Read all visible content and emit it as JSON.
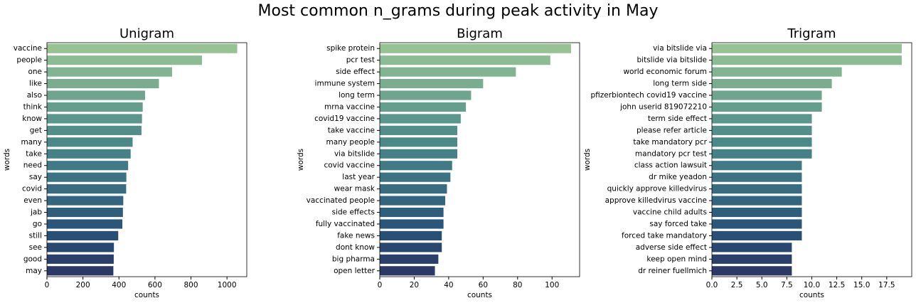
{
  "figure": {
    "title": "Most common n_grams during peak activity in May"
  },
  "chart_data": [
    {
      "type": "bar",
      "orientation": "horizontal",
      "title": "Unigram",
      "xlabel": "counts",
      "ylabel": "words",
      "xlim": [
        0,
        1110
      ],
      "xticks": [
        0,
        200,
        400,
        600,
        800,
        1000
      ],
      "xtick_labels": [
        "0",
        "200",
        "400",
        "600",
        "800",
        "1000"
      ],
      "categories": [
        "vaccine",
        "people",
        "one",
        "like",
        "also",
        "think",
        "know",
        "get",
        "many",
        "take",
        "need",
        "say",
        "covid",
        "even",
        "jab",
        "go",
        "still",
        "see",
        "good",
        "may"
      ],
      "values": [
        1057,
        861,
        695,
        622,
        545,
        532,
        528,
        525,
        476,
        465,
        451,
        441,
        440,
        424,
        422,
        419,
        396,
        372,
        371,
        369
      ],
      "grid": false,
      "palette": "crest"
    },
    {
      "type": "bar",
      "orientation": "horizontal",
      "title": "Bigram",
      "xlabel": "counts",
      "ylabel": "words",
      "xlim": [
        0,
        116
      ],
      "xticks": [
        0,
        20,
        40,
        60,
        80,
        100
      ],
      "xtick_labels": [
        "0",
        "20",
        "40",
        "60",
        "80",
        "100"
      ],
      "categories": [
        "spike protein",
        "pcr test",
        "side effect",
        "immune system",
        "long term",
        "mrna vaccine",
        "covid19 vaccine",
        "take vaccine",
        "many people",
        "via bitslide",
        "covid vaccine",
        "last year",
        "wear mask",
        "vaccinated people",
        "side effects",
        "fully vaccinated",
        "fake news",
        "dont know",
        "big pharma",
        "open letter"
      ],
      "values": [
        111,
        99,
        79,
        60,
        53,
        50,
        47,
        45,
        45,
        45,
        42,
        41,
        39,
        38,
        37,
        37,
        36,
        36,
        34,
        32
      ],
      "grid": false,
      "palette": "crest"
    },
    {
      "type": "bar",
      "orientation": "horizontal",
      "title": "Trigram",
      "xlabel": "counts",
      "ylabel": "words",
      "xlim": [
        0,
        20
      ],
      "xticks": [
        0,
        2.5,
        5,
        7.5,
        10,
        12.5,
        15,
        17.5
      ],
      "xtick_labels": [
        "0.0",
        "2.5",
        "5.0",
        "7.5",
        "10.0",
        "12.5",
        "15.0",
        "17.5"
      ],
      "categories": [
        "via bitslide via",
        "bitslide via bitslide",
        "world economic forum",
        "long term side",
        "pfizerbiontech covid19 vaccine",
        "john userid 819072210",
        "term side effect",
        "please refer article",
        "take mandatory pcr",
        "mandatory pcr test",
        "class action lawsuit",
        "dr mike yeadon",
        "quickly approve killedvirus",
        "approve killedvirus vaccine",
        "vaccine child adults",
        "say forced take",
        "forced take mandatory",
        "adverse side effect",
        "keep open mind",
        "dr reiner fuellmich"
      ],
      "values": [
        19,
        19,
        13,
        12,
        11,
        11,
        10,
        10,
        10,
        10,
        9,
        9,
        9,
        9,
        9,
        9,
        9,
        8,
        8,
        8
      ],
      "grid": false,
      "palette": "crest"
    }
  ]
}
